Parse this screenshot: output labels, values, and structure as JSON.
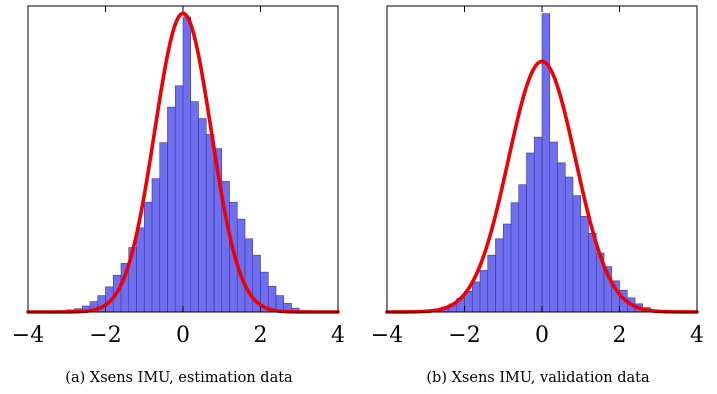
{
  "chart_data": [
    {
      "type": "bar",
      "panel_id": "a",
      "caption": "(a) Xsens IMU, estimation data",
      "xlim": [
        -4,
        4
      ],
      "ylim": [
        0,
        0.56
      ],
      "x_ticks": [
        -4,
        -2,
        0,
        2,
        4
      ],
      "x_tick_labels": [
        "−4",
        "−2",
        "0",
        "2",
        "4"
      ],
      "y_ticks_shown": false,
      "bin_width": 0.2,
      "bins_left_edges": [
        -3.0,
        -2.8,
        -2.6,
        -2.4,
        -2.2,
        -2.0,
        -1.8,
        -1.6,
        -1.4,
        -1.2,
        -1.0,
        -0.8,
        -0.6,
        -0.4,
        -0.2,
        0.0,
        0.2,
        0.4,
        0.6,
        0.8,
        1.0,
        1.2,
        1.4,
        1.6,
        1.8,
        2.0,
        2.2,
        2.4,
        2.6,
        2.8
      ],
      "values": [
        0.004,
        0.006,
        0.011,
        0.019,
        0.03,
        0.046,
        0.067,
        0.089,
        0.118,
        0.154,
        0.201,
        0.244,
        0.31,
        0.375,
        0.414,
        0.54,
        0.385,
        0.354,
        0.325,
        0.299,
        0.239,
        0.201,
        0.17,
        0.134,
        0.104,
        0.073,
        0.047,
        0.03,
        0.016,
        0.007
      ],
      "fit_curve": {
        "type": "gaussian",
        "mean": 0.0,
        "std": 0.73,
        "color": "#f00000"
      },
      "bar_color": "#6666ee",
      "bar_edge_color": "#3a3a99"
    },
    {
      "type": "bar",
      "panel_id": "b",
      "caption": "(b) Xsens IMU, validation data",
      "xlim": [
        -4,
        4
      ],
      "ylim": [
        0,
        0.56
      ],
      "x_ticks": [
        -4,
        -2,
        0,
        2,
        4
      ],
      "x_tick_labels": [
        "−4",
        "−2",
        "0",
        "2",
        "4"
      ],
      "y_ticks_shown": false,
      "bin_width": 0.2,
      "bins_left_edges": [
        -3.0,
        -2.8,
        -2.6,
        -2.4,
        -2.2,
        -2.0,
        -1.8,
        -1.6,
        -1.4,
        -1.2,
        -1.0,
        -0.8,
        -0.6,
        -0.4,
        -0.2,
        0.0,
        0.2,
        0.4,
        0.6,
        0.8,
        1.0,
        1.2,
        1.4,
        1.6,
        1.8,
        2.0,
        2.2,
        2.4,
        2.6,
        2.8
      ],
      "values": [
        0.002,
        0.005,
        0.009,
        0.015,
        0.025,
        0.038,
        0.055,
        0.076,
        0.104,
        0.134,
        0.161,
        0.2,
        0.233,
        0.291,
        0.32,
        0.546,
        0.311,
        0.273,
        0.247,
        0.213,
        0.175,
        0.144,
        0.108,
        0.083,
        0.057,
        0.04,
        0.026,
        0.015,
        0.008,
        0.004
      ],
      "fit_curve": {
        "type": "gaussian",
        "mean": 0.0,
        "std": 0.87,
        "color": "#f00000"
      },
      "bar_color": "#6666ee",
      "bar_edge_color": "#3a3a99"
    }
  ]
}
